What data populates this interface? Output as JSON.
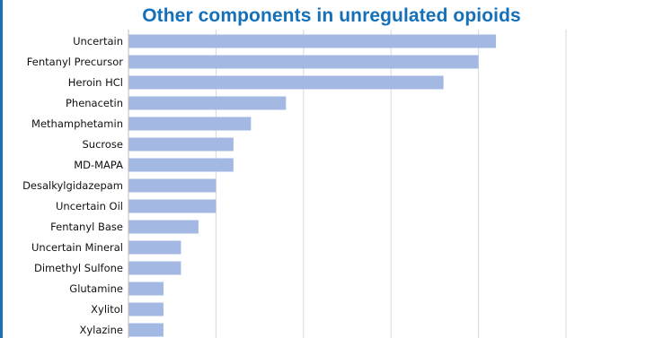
{
  "chart_data": {
    "type": "bar",
    "orientation": "horizontal",
    "title": "Other components in unregulated opioids",
    "categories": [
      "Uncertain",
      "Fentanyl Precursor",
      "Heroin HCl",
      "Phenacetin",
      "Methamphetamin",
      "Sucrose",
      "MD-MAPA",
      "Desalkylgidazepam",
      "Uncertain Oil",
      "Fentanyl Base",
      "Uncertain Mineral",
      "Dimethyl Sulfone",
      "Glutamine",
      "Xylitol",
      "Xylazine"
    ],
    "values": [
      21,
      20,
      18,
      9,
      7,
      6,
      6,
      5,
      5,
      4,
      3,
      3,
      2,
      2,
      2
    ],
    "xlim": [
      0,
      25
    ],
    "grid": true,
    "bar_color": "#a3b9e4",
    "title_color": "#1470b8",
    "accent_color": "#1f6fb8"
  }
}
